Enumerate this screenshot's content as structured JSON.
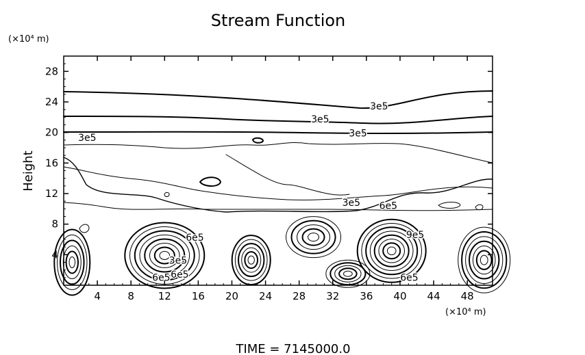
{
  "chart_data": {
    "type": "contour",
    "title": "Stream Function",
    "xlabel": "",
    "ylabel": "Height",
    "x_unit": "(×10⁴ m)",
    "y_unit": "(×10⁴ m)",
    "xlim": [
      0,
      51
    ],
    "ylim": [
      0,
      30
    ],
    "x_ticks": [
      4,
      8,
      12,
      16,
      20,
      24,
      28,
      32,
      36,
      40,
      44,
      48
    ],
    "y_ticks": [
      4,
      8,
      12,
      16,
      20,
      24,
      28
    ],
    "grid": false,
    "footer": "TIME = 7145000.0",
    "contour_labels": [
      {
        "text": "3e5",
        "x": 30.5,
        "y": 21.3
      },
      {
        "text": "3e5",
        "x": 37.5,
        "y": 23.0
      },
      {
        "text": "3e5",
        "x": 35.0,
        "y": 19.5
      },
      {
        "text": "3e5",
        "x": 2.8,
        "y": 18.9
      },
      {
        "text": "3e5",
        "x": 34.2,
        "y": 10.4
      },
      {
        "text": "6e5",
        "x": 38.6,
        "y": 10.0
      },
      {
        "text": "9e5",
        "x": 41.8,
        "y": 6.2
      },
      {
        "text": "6e5",
        "x": 15.6,
        "y": 5.8
      },
      {
        "text": "3e5",
        "x": 13.6,
        "y": 2.8
      },
      {
        "text": "6e5",
        "x": 11.6,
        "y": 0.6
      },
      {
        "text": "6e5",
        "x": 13.8,
        "y": 1.0
      },
      {
        "text": "6e5",
        "x": 41.1,
        "y": 0.6
      }
    ],
    "eddy_centers": [
      {
        "x": 12.0,
        "y": 3.9
      },
      {
        "x": 22.3,
        "y": 3.3
      },
      {
        "x": 29.7,
        "y": 6.3
      },
      {
        "x": 33.8,
        "y": 1.5
      },
      {
        "x": 39.0,
        "y": 4.5
      },
      {
        "x": 50.0,
        "y": 3.3
      },
      {
        "x": 1.0,
        "y": 3.0
      }
    ]
  }
}
